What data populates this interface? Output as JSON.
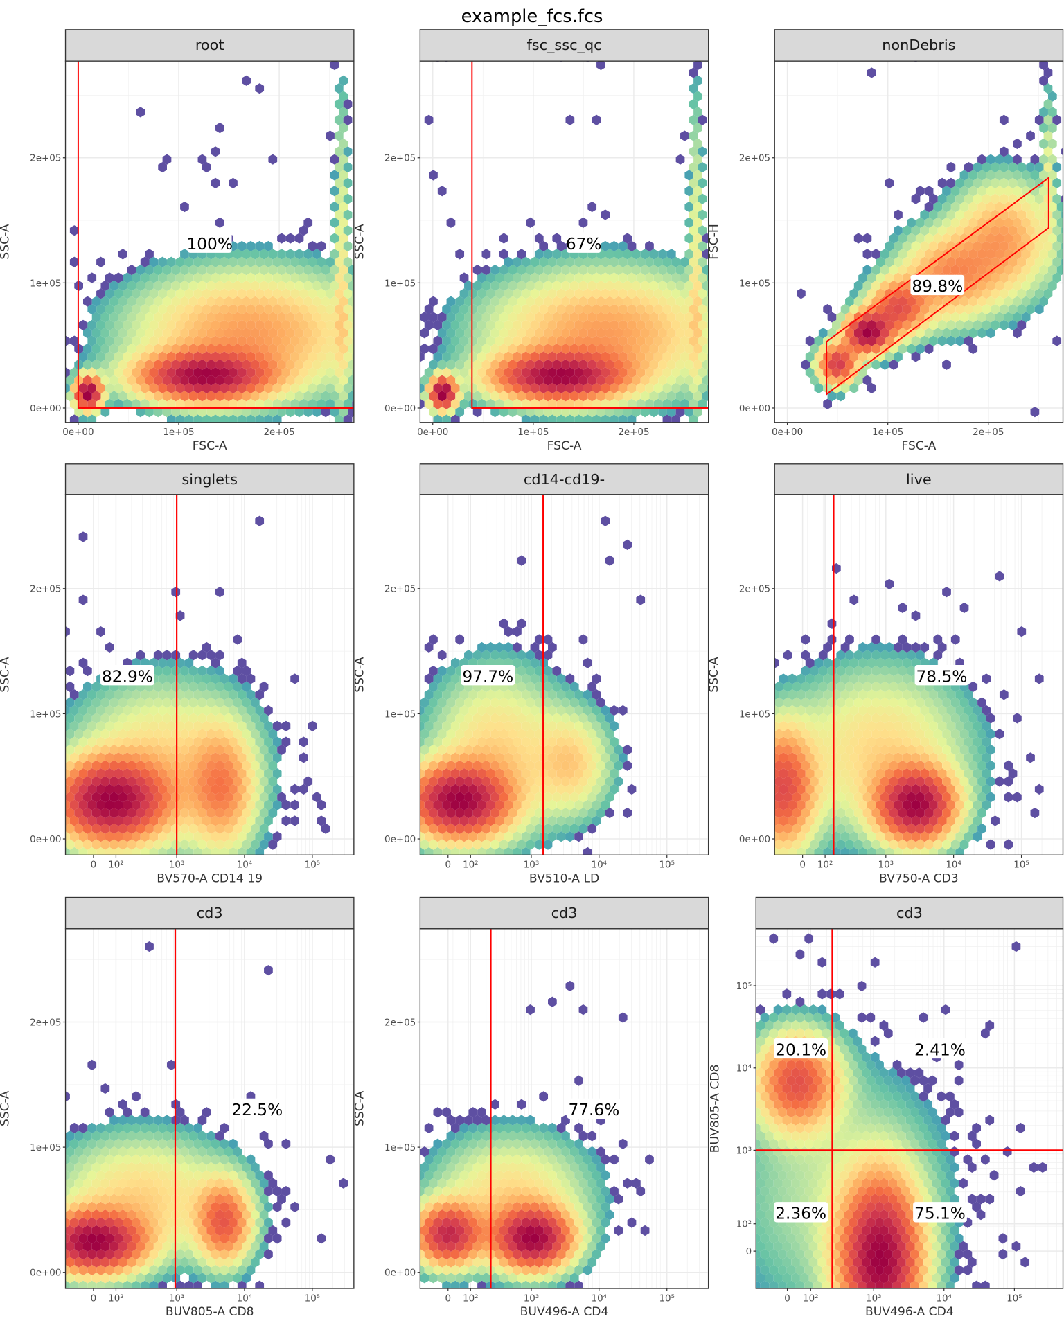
{
  "figure": {
    "title": "example_fcs.fcs"
  },
  "palette": [
    "#5e4fa2",
    "#3288bd",
    "#66c2a5",
    "#abdda4",
    "#e6f598",
    "#fee08b",
    "#fdae61",
    "#f46d43",
    "#d53e4f",
    "#9e0142"
  ],
  "gate_color": "#ff0000",
  "chart_data": [
    {
      "type": "hexbin",
      "title": "root",
      "xlabel": "FSC-A",
      "ylabel": "SSC-A",
      "x_scale": "linear",
      "y_scale": "linear",
      "xlim": [
        -12700,
        274000
      ],
      "ylim": [
        -11500,
        276000
      ],
      "xticks": [
        {
          "value": 0,
          "label": "0e+00"
        },
        {
          "value": 100000,
          "label": "1e+05"
        },
        {
          "value": 200000,
          "label": "2e+05"
        }
      ],
      "yticks": [
        {
          "value": 0,
          "label": "0e+00"
        },
        {
          "value": 100000,
          "label": "1e+05"
        },
        {
          "value": 200000,
          "label": "2e+05"
        }
      ],
      "gate": {
        "type": "rectangle",
        "x": [
          0,
          null
        ],
        "y": [
          0,
          null
        ]
      },
      "gate_labels": [
        "100%"
      ],
      "clusters": [
        {
          "x": 125000,
          "y": 25000,
          "sx": 40000,
          "sy": 12000,
          "w": 1
        },
        {
          "x": 170000,
          "y": 60000,
          "sx": 70000,
          "sy": 30000,
          "w": 0.35
        },
        {
          "x": 10000,
          "y": 12000,
          "sx": 8000,
          "sy": 8000,
          "w": 1.2
        },
        {
          "x": 262000,
          "y": 120000,
          "sx": 4000,
          "sy": 80000,
          "w": 0.15
        }
      ]
    },
    {
      "type": "hexbin",
      "title": "fsc_ssc_qc",
      "xlabel": "FSC-A",
      "ylabel": "SSC-A",
      "x_scale": "linear",
      "y_scale": "linear",
      "xlim": [
        -12700,
        274000
      ],
      "ylim": [
        -11500,
        276000
      ],
      "xticks": [
        {
          "value": 0,
          "label": "0e+00"
        },
        {
          "value": 100000,
          "label": "1e+05"
        },
        {
          "value": 200000,
          "label": "2e+05"
        }
      ],
      "yticks": [
        {
          "value": 0,
          "label": "0e+00"
        },
        {
          "value": 100000,
          "label": "1e+05"
        },
        {
          "value": 200000,
          "label": "2e+05"
        }
      ],
      "gate": {
        "type": "rectangle",
        "x": [
          39000,
          null
        ],
        "y": [
          0,
          null
        ]
      },
      "gate_labels": [
        "67%"
      ],
      "clusters": [
        {
          "x": 125000,
          "y": 25000,
          "sx": 40000,
          "sy": 12000,
          "w": 1
        },
        {
          "x": 170000,
          "y": 60000,
          "sx": 70000,
          "sy": 30000,
          "w": 0.35
        },
        {
          "x": 10000,
          "y": 12000,
          "sx": 8000,
          "sy": 8000,
          "w": 1.2
        },
        {
          "x": 262000,
          "y": 120000,
          "sx": 4000,
          "sy": 80000,
          "w": 0.15
        }
      ]
    },
    {
      "type": "hexbin",
      "title": "nonDebris",
      "xlabel": "FSC-A",
      "ylabel": "FSC-H",
      "x_scale": "linear",
      "y_scale": "linear",
      "xlim": [
        -12700,
        274000
      ],
      "ylim": [
        -11500,
        276000
      ],
      "xticks": [
        {
          "value": 0,
          "label": "0e+00"
        },
        {
          "value": 100000,
          "label": "1e+05"
        },
        {
          "value": 200000,
          "label": "2e+05"
        }
      ],
      "yticks": [
        {
          "value": 0,
          "label": "0e+00"
        },
        {
          "value": 100000,
          "label": "1e+05"
        },
        {
          "value": 200000,
          "label": "2e+05"
        }
      ],
      "gate": {
        "type": "polygon",
        "points": [
          [
            39000,
            53000
          ],
          [
            260000,
            184000
          ],
          [
            260000,
            144000
          ],
          [
            39000,
            11000
          ]
        ]
      },
      "gate_labels": [
        "89.8%"
      ],
      "clusters": [
        {
          "x": 50000,
          "y": 35000,
          "sx": 12000,
          "sy": 10000,
          "w": 0.9
        },
        {
          "x": 80000,
          "y": 60000,
          "sx": 14000,
          "sy": 10000,
          "w": 1.3
        },
        {
          "x": 110000,
          "y": 80000,
          "sx": 18000,
          "sy": 14000,
          "w": 0.7
        },
        {
          "x": 160000,
          "y": 105000,
          "sx": 30000,
          "sy": 22000,
          "w": 0.45
        },
        {
          "x": 215000,
          "y": 135000,
          "sx": 30000,
          "sy": 28000,
          "w": 0.4
        },
        {
          "x": 260000,
          "y": 190000,
          "sx": 4000,
          "sy": 40000,
          "w": 0.15
        }
      ]
    },
    {
      "type": "hexbin",
      "title": "singlets",
      "xlabel": "BV570-A CD14 19",
      "ylabel": "SSC-A",
      "x_scale": "biexponential",
      "y_scale": "linear",
      "ylim": [
        -11500,
        276000
      ],
      "xticks": [
        {
          "value": 0,
          "label": "0"
        },
        {
          "value": 100,
          "label": "10²"
        },
        {
          "value": 1000,
          "label": "10³"
        },
        {
          "value": 10000,
          "label": "10⁴"
        },
        {
          "value": 100000,
          "label": "10⁵"
        }
      ],
      "yticks": [
        {
          "value": 0,
          "label": "0e+00"
        },
        {
          "value": 100000,
          "label": "1e+05"
        },
        {
          "value": 200000,
          "label": "2e+05"
        }
      ],
      "gate": {
        "type": "vertical",
        "x": 1000
      },
      "gate_labels": [
        "82.9%"
      ],
      "clusters": [
        {
          "x": 70,
          "y": 30000,
          "sx": 0.5,
          "sy": 20000,
          "w": 1
        },
        {
          "x": 4700,
          "y": 40000,
          "sx": 0.3,
          "sy": 30000,
          "w": 0.35
        },
        {
          "x": 590,
          "y": 60000,
          "sx": 0.8,
          "sy": 40000,
          "w": 0.2
        }
      ]
    },
    {
      "type": "hexbin",
      "title": "cd14-cd19-",
      "xlabel": "BV510-A LD",
      "ylabel": "SSC-A",
      "x_scale": "biexponential",
      "y_scale": "linear",
      "ylim": [
        -11500,
        276000
      ],
      "xticks": [
        {
          "value": 0,
          "label": "0"
        },
        {
          "value": 100,
          "label": "10²"
        },
        {
          "value": 1000,
          "label": "10³"
        },
        {
          "value": 10000,
          "label": "10⁴"
        },
        {
          "value": 100000,
          "label": "10⁵"
        }
      ],
      "yticks": [
        {
          "value": 0,
          "label": "0e+00"
        },
        {
          "value": 100000,
          "label": "1e+05"
        },
        {
          "value": 200000,
          "label": "2e+05"
        }
      ],
      "gate": {
        "type": "vertical",
        "x": 1500
      },
      "gate_labels": [
        "97.7%"
      ],
      "clusters": [
        {
          "x": 42,
          "y": 30000,
          "sx": 0.45,
          "sy": 18000,
          "w": 1
        },
        {
          "x": 4000,
          "y": 60000,
          "sx": 0.35,
          "sy": 25000,
          "w": 0.2
        },
        {
          "x": 300,
          "y": 70000,
          "sx": 0.6,
          "sy": 40000,
          "w": 0.2
        }
      ]
    },
    {
      "type": "hexbin",
      "title": "live",
      "xlabel": "BV750-A CD3",
      "ylabel": "SSC-A",
      "x_scale": "biexponential",
      "y_scale": "linear",
      "ylim": [
        -11500,
        276000
      ],
      "xticks": [
        {
          "value": 0,
          "label": "0"
        },
        {
          "value": 100,
          "label": "10²"
        },
        {
          "value": 1000,
          "label": "10³"
        },
        {
          "value": 10000,
          "label": "10⁴"
        },
        {
          "value": 100000,
          "label": "10⁵"
        }
      ],
      "yticks": [
        {
          "value": 0,
          "label": "0e+00"
        },
        {
          "value": 100000,
          "label": "1e+05"
        },
        {
          "value": 200000,
          "label": "2e+05"
        }
      ],
      "gate": {
        "type": "vertical",
        "x": 150
      },
      "gate_labels": [
        "78.5%"
      ],
      "clusters": [
        {
          "x": 2800,
          "y": 27000,
          "sx": 0.35,
          "sy": 18000,
          "w": 1
        },
        {
          "x": -89,
          "y": 40000,
          "sx": 0.3,
          "sy": 30000,
          "w": 0.6
        },
        {
          "x": 800,
          "y": 70000,
          "sx": 0.8,
          "sy": 40000,
          "w": 0.2
        }
      ]
    },
    {
      "type": "hexbin",
      "title": "cd3",
      "xlabel": "BUV805-A CD8",
      "ylabel": "SSC-A",
      "x_scale": "biexponential",
      "y_scale": "linear",
      "ylim": [
        -11500,
        276000
      ],
      "xticks": [
        {
          "value": 0,
          "label": "0"
        },
        {
          "value": 100,
          "label": "10²"
        },
        {
          "value": 1000,
          "label": "10³"
        },
        {
          "value": 10000,
          "label": "10⁴"
        },
        {
          "value": 100000,
          "label": "10⁵"
        }
      ],
      "yticks": [
        {
          "value": 0,
          "label": "0e+00"
        },
        {
          "value": 100000,
          "label": "1e+05"
        },
        {
          "value": 200000,
          "label": "2e+05"
        }
      ],
      "gate": {
        "type": "vertical",
        "x": 950
      },
      "gate_labels": [
        "22.5%"
      ],
      "clusters": [
        {
          "x": 0,
          "y": 24000,
          "sx": 0.45,
          "sy": 15000,
          "w": 1
        },
        {
          "x": 5000,
          "y": 40000,
          "sx": 0.25,
          "sy": 20000,
          "w": 0.5
        },
        {
          "x": 300,
          "y": 60000,
          "sx": 0.8,
          "sy": 30000,
          "w": 0.2
        }
      ]
    },
    {
      "type": "hexbin",
      "title": "cd3",
      "xlabel": "BUV496-A CD4",
      "ylabel": "SSC-A",
      "x_scale": "biexponential",
      "y_scale": "linear",
      "ylim": [
        -11500,
        276000
      ],
      "xticks": [
        {
          "value": 0,
          "label": "0"
        },
        {
          "value": 100,
          "label": "10²"
        },
        {
          "value": 1000,
          "label": "10³"
        },
        {
          "value": 10000,
          "label": "10⁴"
        },
        {
          "value": 100000,
          "label": "10⁵"
        }
      ],
      "yticks": [
        {
          "value": 0,
          "label": "0e+00"
        },
        {
          "value": 100000,
          "label": "1e+05"
        },
        {
          "value": 200000,
          "label": "2e+05"
        }
      ],
      "gate": {
        "type": "vertical",
        "x": 240
      },
      "gate_labels": [
        "77.6%"
      ],
      "clusters": [
        {
          "x": 0,
          "y": 30000,
          "sx": 0.3,
          "sy": 15000,
          "w": 0.8
        },
        {
          "x": 1060,
          "y": 27000,
          "sx": 0.35,
          "sy": 15000,
          "w": 1
        },
        {
          "x": 500,
          "y": 60000,
          "sx": 0.7,
          "sy": 30000,
          "w": 0.2
        }
      ]
    },
    {
      "type": "hexbin",
      "title": "cd3",
      "xlabel": "BUV496-A CD4",
      "ylabel": "BUV805-A CD8",
      "x_scale": "biexponential",
      "y_scale": "biexponential",
      "xticks": [
        {
          "value": 0,
          "label": "0"
        },
        {
          "value": 100,
          "label": "10²"
        },
        {
          "value": 1000,
          "label": "10³"
        },
        {
          "value": 10000,
          "label": "10⁴"
        },
        {
          "value": 100000,
          "label": "10⁵"
        }
      ],
      "yticks": [
        {
          "value": 0,
          "label": "0"
        },
        {
          "value": 100,
          "label": "10²"
        },
        {
          "value": 1000,
          "label": "10³"
        },
        {
          "value": 10000,
          "label": "10⁴"
        },
        {
          "value": 100000,
          "label": "10⁵"
        }
      ],
      "gate": {
        "type": "quadrant",
        "x": 245,
        "y": 1000
      },
      "gate_labels": [
        "20.1%",
        "2.41%",
        "2.36%",
        "75.1%"
      ],
      "clusters": [
        {
          "x": 1240,
          "y": -28,
          "sx": 0.35,
          "sy": 0.6,
          "w": 1
        },
        {
          "x": 39,
          "y": 6800,
          "sx": 0.35,
          "sy": 0.35,
          "w": 0.55
        },
        {
          "x": 300,
          "y": 300,
          "sx": 1,
          "sy": 1,
          "w": 0.08
        }
      ]
    }
  ]
}
